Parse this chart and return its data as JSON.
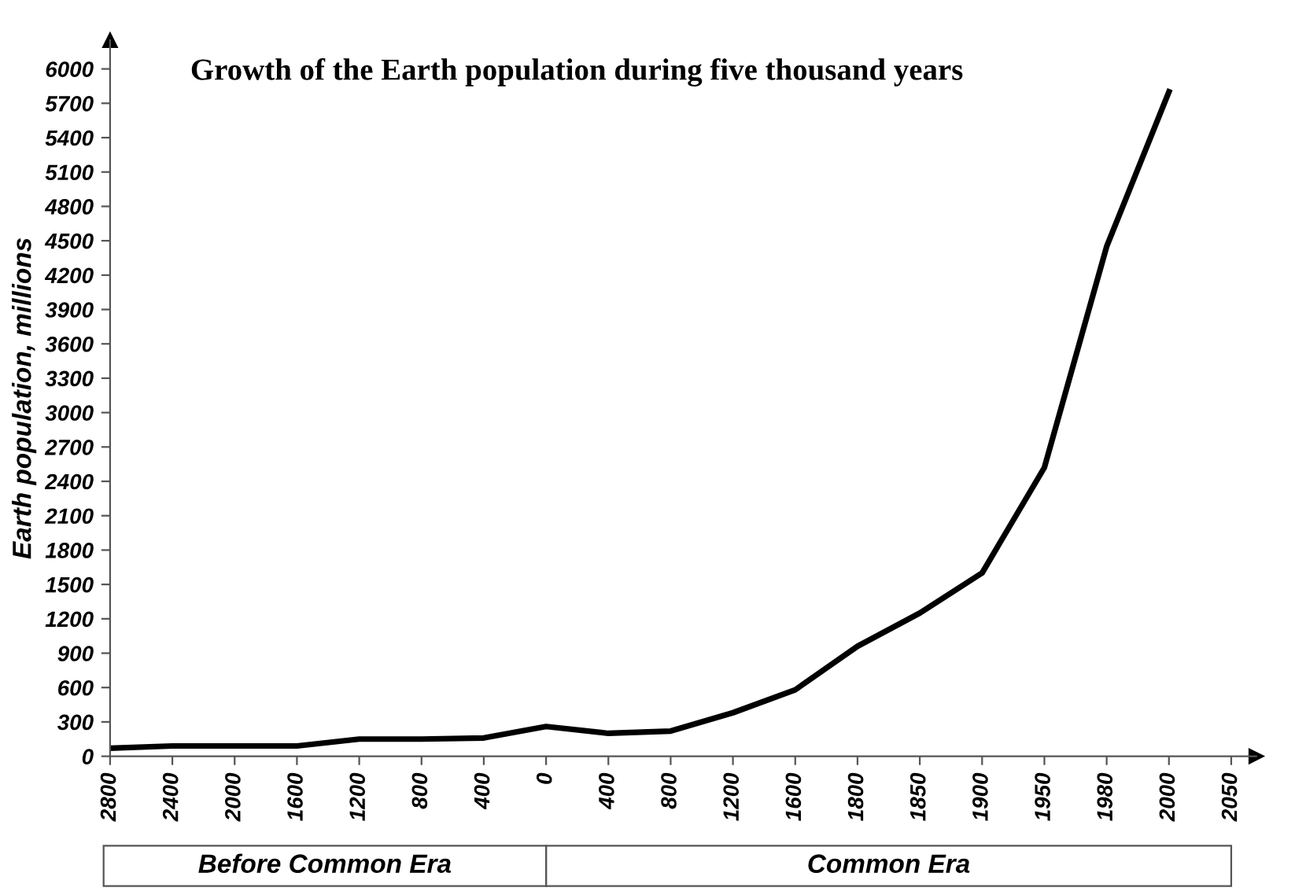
{
  "chart_data": {
    "type": "line",
    "title": "Growth of the Earth population during five thousand years",
    "ylabel": "Earth population, millions",
    "categories": [
      "2800",
      "2400",
      "2000",
      "1600",
      "1200",
      "800",
      "400",
      "0",
      "400",
      "800",
      "1200",
      "1600",
      "1800",
      "1850",
      "1900",
      "1950",
      "1980",
      "2000",
      "2050"
    ],
    "series": [
      {
        "color": "#000000",
        "values": [
          70,
          90,
          90,
          90,
          150,
          150,
          160,
          260,
          200,
          220,
          380,
          580,
          960,
          1250,
          1600,
          2520,
          4450,
          5800,
          null
        ]
      }
    ],
    "ylim": [
      0,
      6250
    ],
    "yticks": [
      0,
      300,
      600,
      900,
      1200,
      1500,
      1800,
      2100,
      2400,
      2700,
      3000,
      3300,
      3600,
      3900,
      4200,
      4500,
      4800,
      5100,
      5400,
      5700,
      6000
    ],
    "grid": false,
    "marker": "none",
    "line_style": "solid",
    "annotations": [
      "Before Common Era",
      "Common Era"
    ]
  }
}
